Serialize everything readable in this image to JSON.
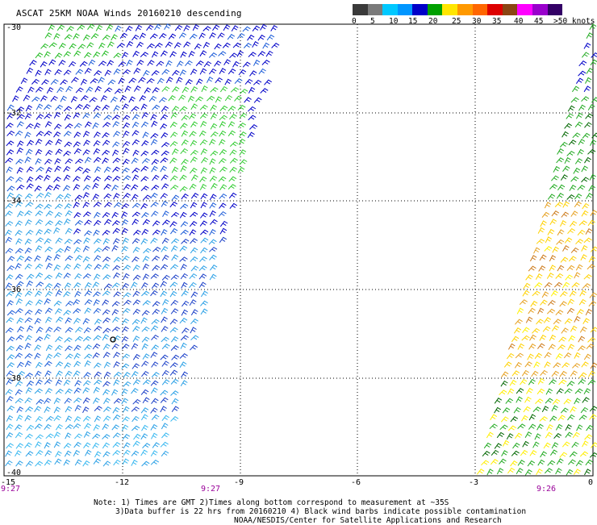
{
  "title": "ASCAT 25KM NOAA Winds 20160210 descending",
  "legend": {
    "colors": [
      "#3a3a3a",
      "#7a7a7a",
      "#00c8ff",
      "#0096ff",
      "#0000c8",
      "#00a000",
      "#ffe600",
      "#ff9900",
      "#ff6600",
      "#dd0000",
      "#8b4513",
      "#ff00ff",
      "#9900cc",
      "#330066"
    ],
    "labels": [
      "0",
      "5",
      "10",
      "15",
      "20",
      "25",
      "30",
      "35",
      "40",
      "45",
      ">50 knots"
    ]
  },
  "axes": {
    "lat_labels": [
      "-30",
      "-32",
      "-34",
      "-36",
      "-38",
      "-40"
    ],
    "lon_labels": [
      "-15",
      "-12",
      "-9",
      "-6",
      "-3",
      "0"
    ]
  },
  "pass_times": [
    "9:27",
    "9:27",
    "9:26"
  ],
  "notes": [
    "Note: 1) Times are GMT 2)Times along bottom correspond to measurement at ~35S",
    "3)Data buffer is 22 hrs from 20160210 4) Black wind barbs indicate possible contamination",
    "NOAA/NESDIS/Center for Satellite Applications and Research"
  ],
  "map_data": {
    "lat_range": [
      -40,
      -30
    ],
    "lon_range": [
      -15,
      0
    ],
    "swaths": [
      {
        "name": "west",
        "speed_zones": "blue-dominant with green patches north, cyan south"
      },
      {
        "name": "east",
        "speed_zones": "blue/green north, yellow/orange central, green/yellow south"
      }
    ]
  }
}
